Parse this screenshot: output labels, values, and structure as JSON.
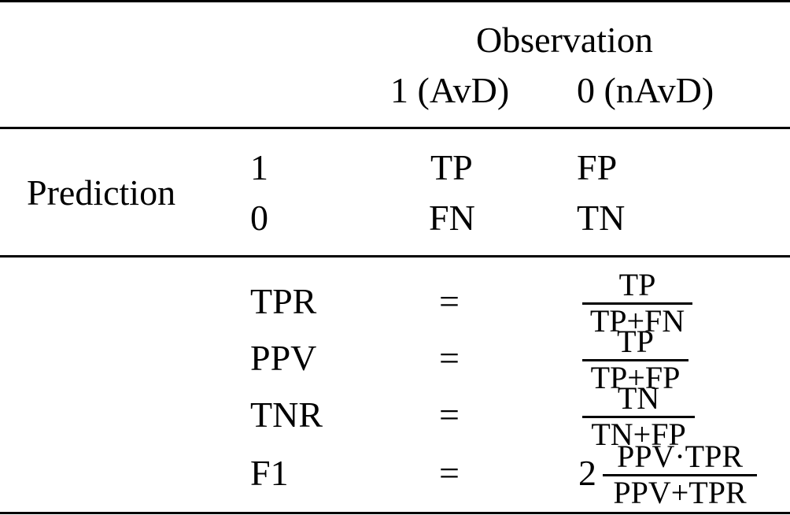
{
  "table": {
    "header": {
      "group_label": "Observation",
      "col_positive": "1 (AvD)",
      "col_negative": "0 (nAvD)"
    },
    "confusion": {
      "row_group_label": "Prediction",
      "rows": [
        {
          "pred": "1",
          "obs_pos": "TP",
          "obs_neg": "FP"
        },
        {
          "pred": "0",
          "obs_pos": "FN",
          "obs_neg": "TN"
        }
      ]
    },
    "metrics": [
      {
        "name": "TPR",
        "eq": "=",
        "numerator": "TP",
        "denominator": "TP+FN"
      },
      {
        "name": "PPV",
        "eq": "=",
        "numerator": "TP",
        "denominator": "TP+FP"
      },
      {
        "name": "TNR",
        "eq": "=",
        "numerator": "TN",
        "denominator": "TN+FP"
      },
      {
        "name": "F1",
        "eq": "=",
        "coefficient": "2",
        "numerator": "PPV·TPR",
        "denominator": "PPV+TPR"
      }
    ]
  }
}
